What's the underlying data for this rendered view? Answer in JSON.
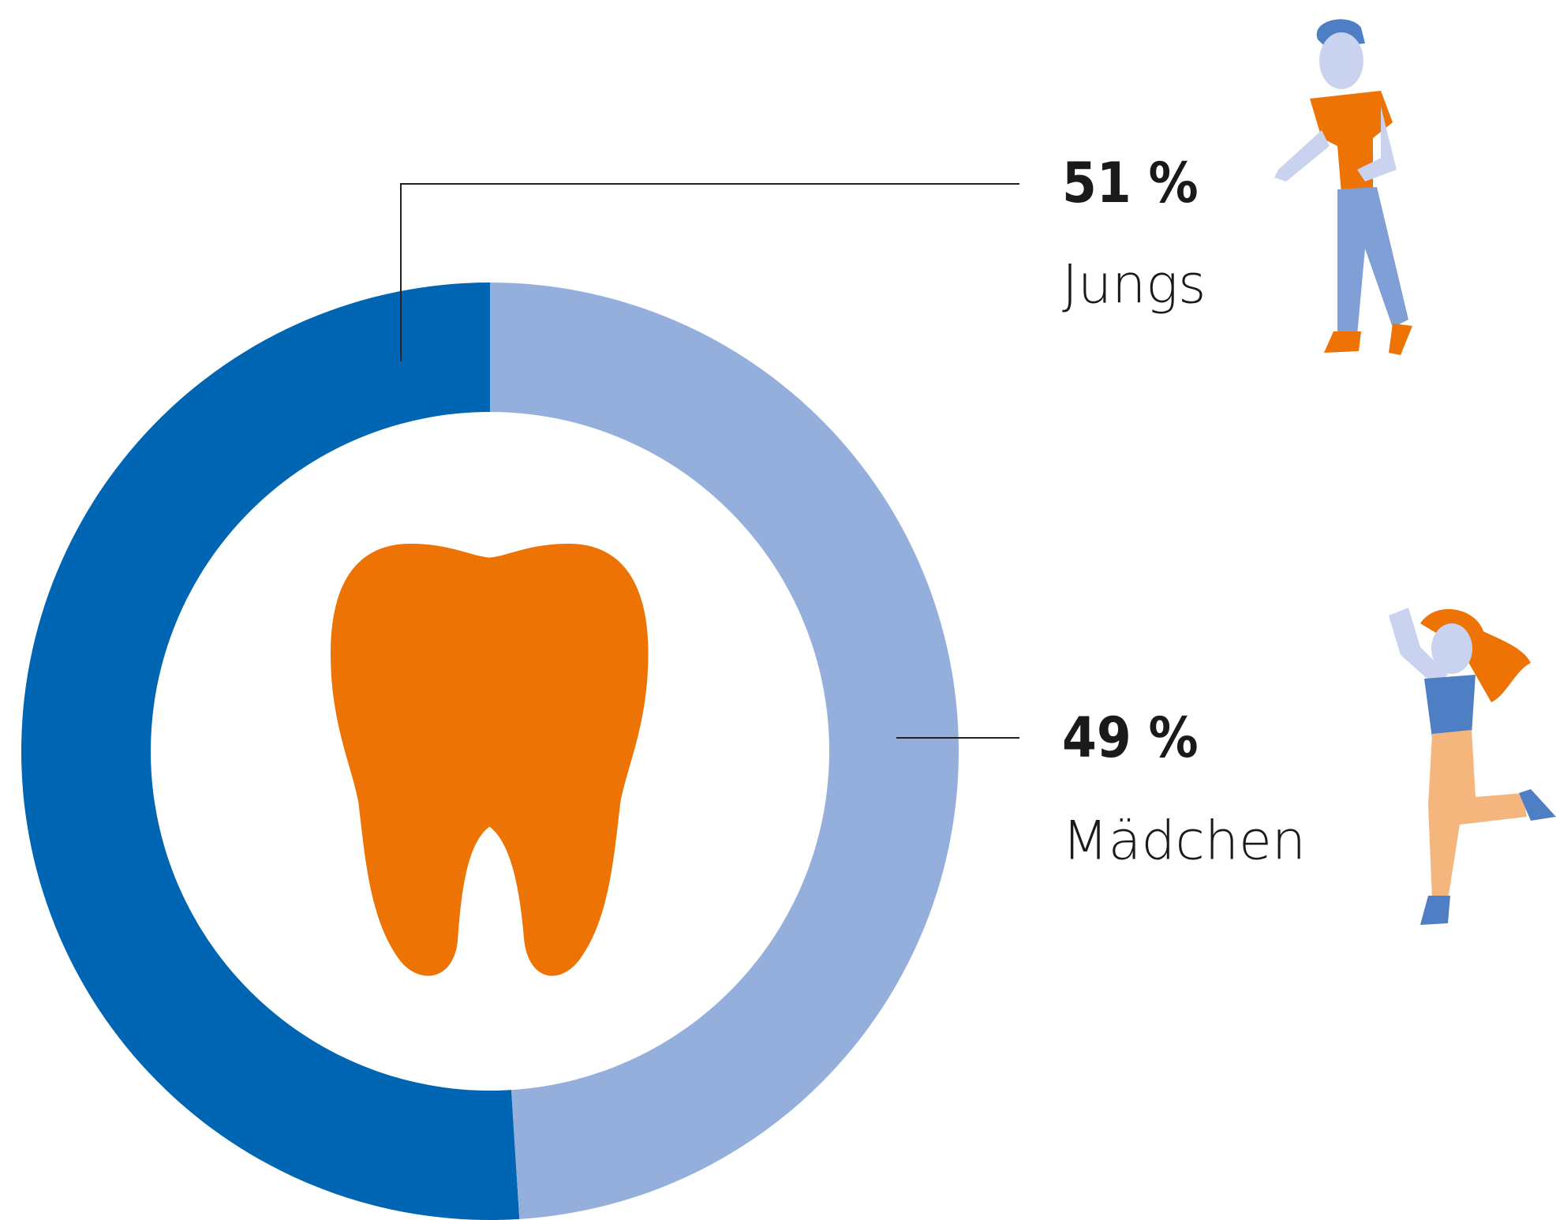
{
  "chart_data": {
    "type": "pie",
    "categories": [
      "Jungs",
      "Mädchen"
    ],
    "values": [
      51,
      49
    ],
    "value_labels": [
      "51 %",
      "49 %"
    ],
    "colors": [
      "#0066b3",
      "#95afdc"
    ]
  }
}
